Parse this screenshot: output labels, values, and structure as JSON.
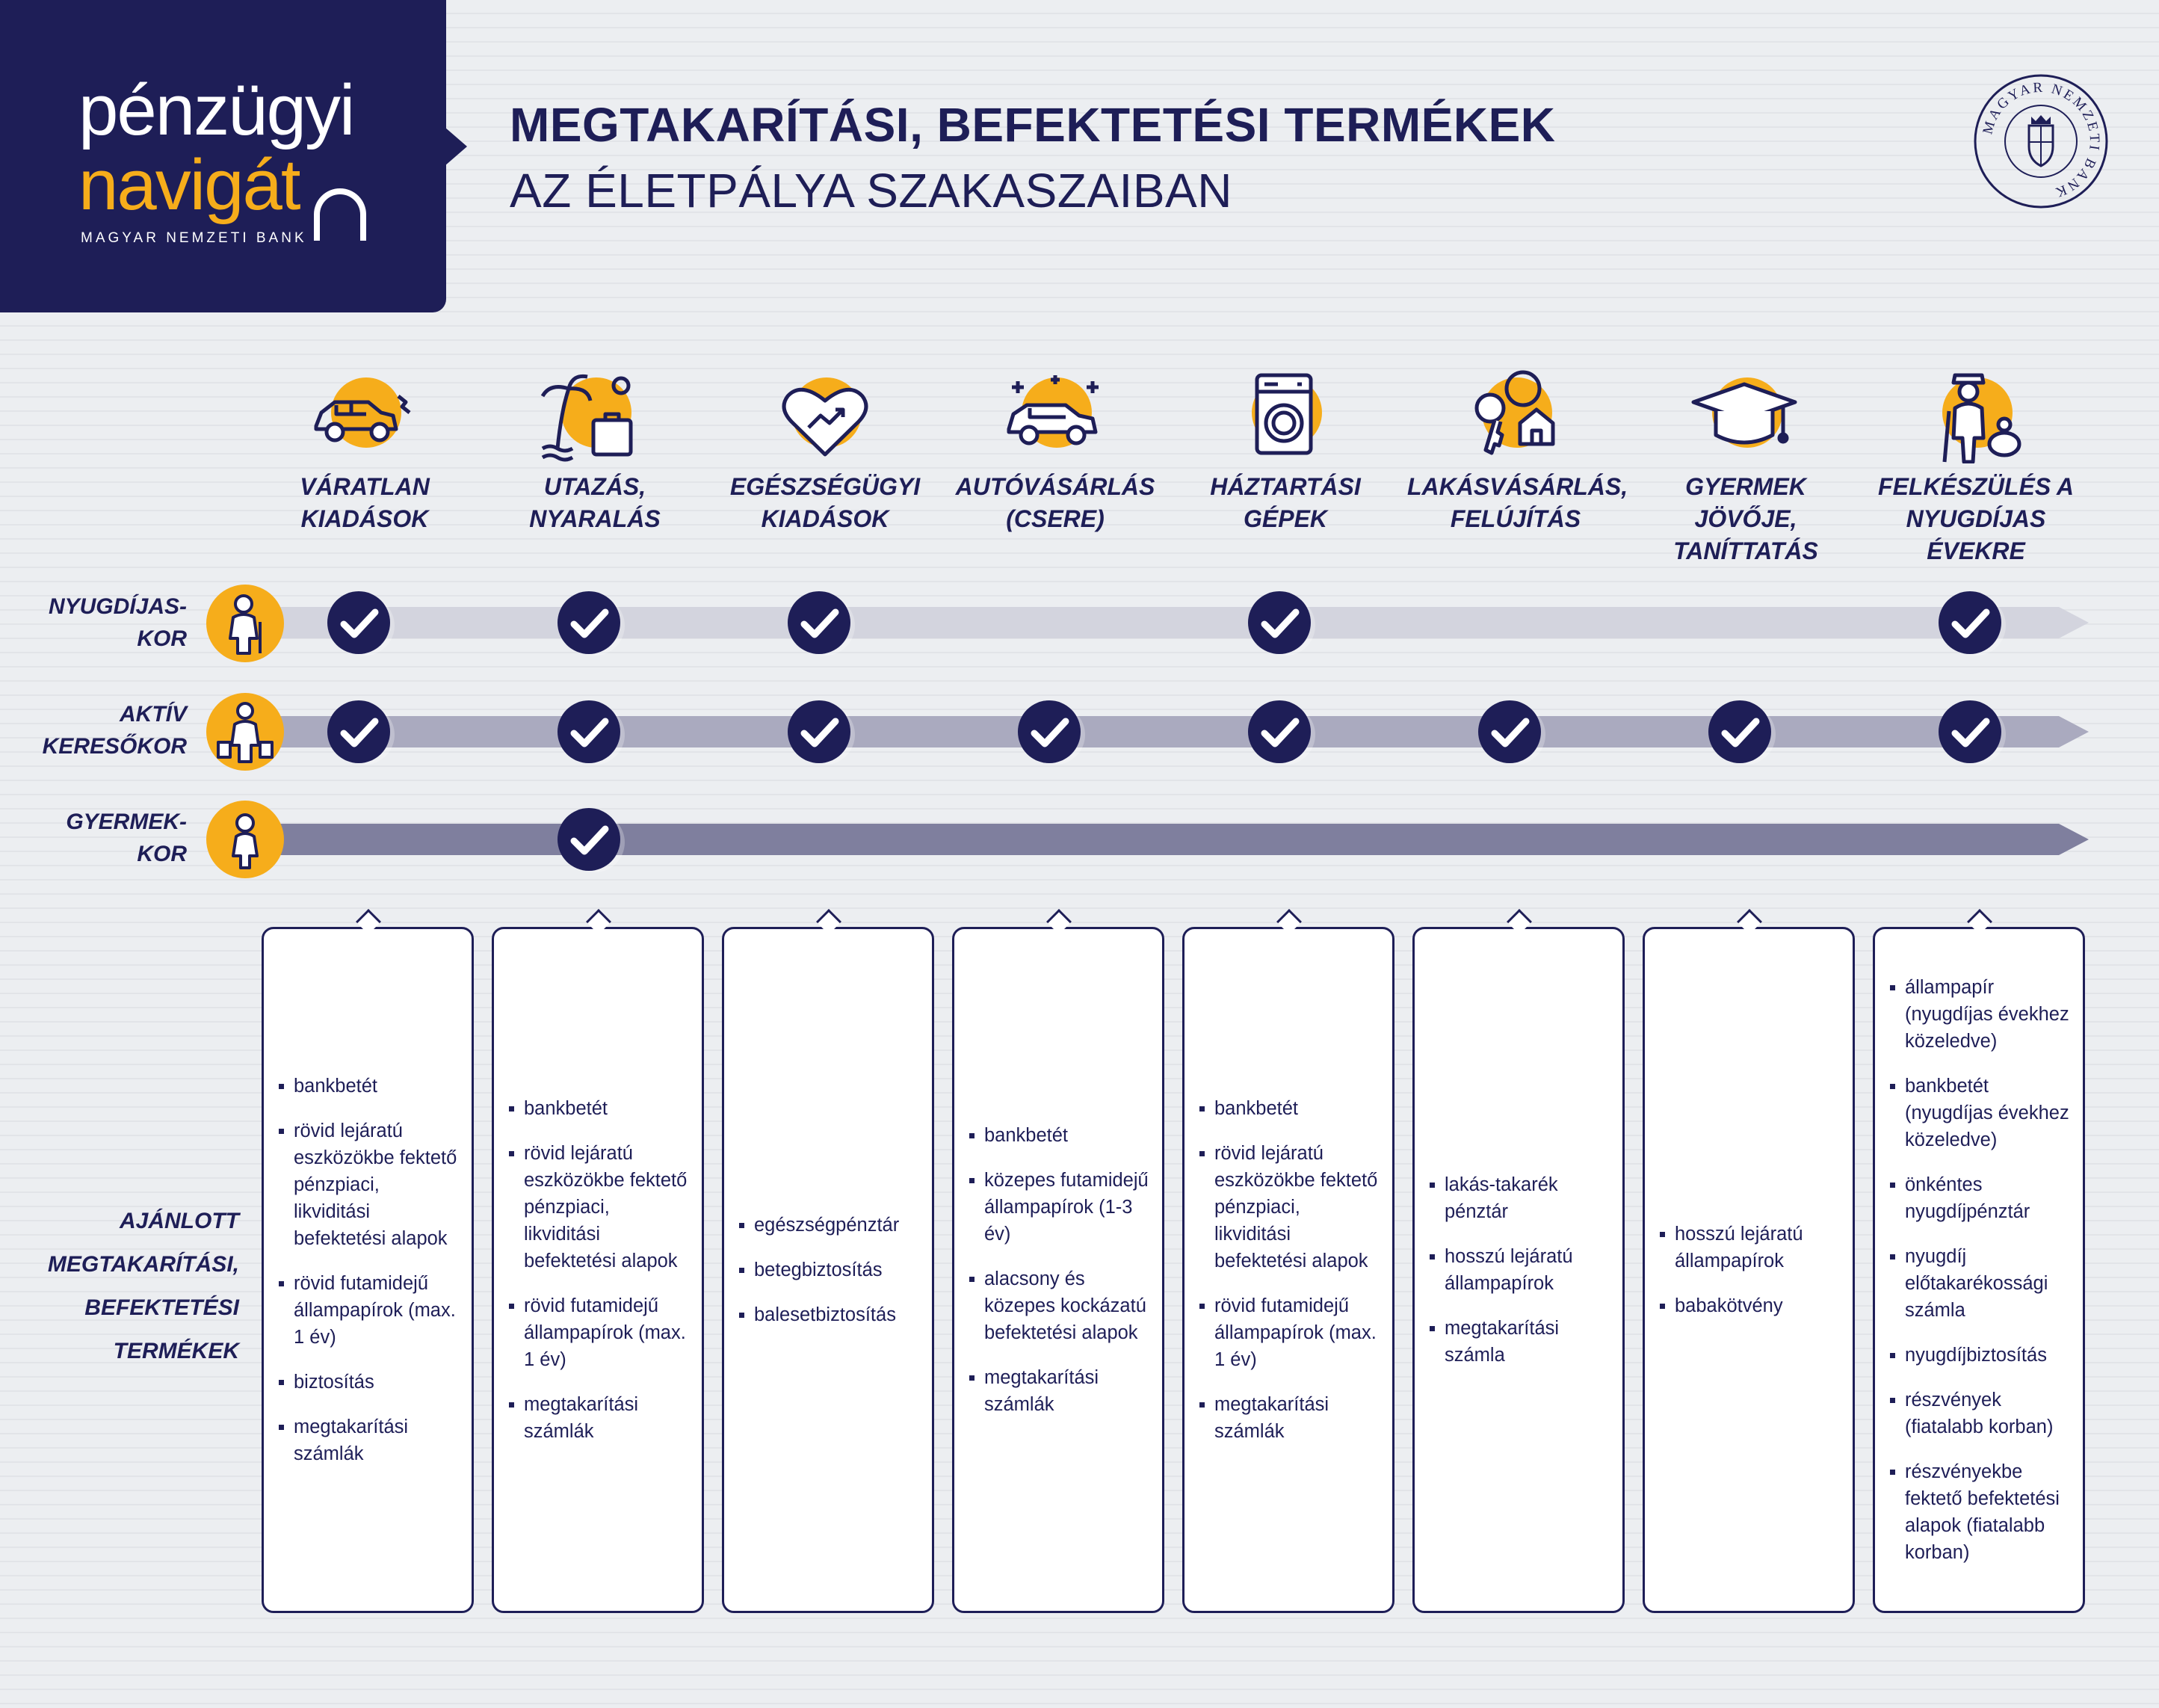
{
  "logo": {
    "line1": "pénzügyi",
    "line2": "navigát",
    "subtitle": "MAGYAR NEMZETI BANK"
  },
  "title": {
    "main": "MEGTAKARÍTÁSI, BEFEKTETÉSI TERMÉKEK",
    "sub": "AZ ÉLETPÁLYA SZAKASZAIBAN"
  },
  "seal": {
    "text": "MAGYAR NEMZETI BANK"
  },
  "colors": {
    "navy": "#1e1e57",
    "accent": "#f6ad1b",
    "band_top": "#d3d4de",
    "band_mid": "#aaaabf",
    "band_bottom": "#7f7f9e"
  },
  "categories": [
    {
      "label": "VÁRATLAN KIADÁSOK",
      "icon": "car-crash-icon"
    },
    {
      "label": "UTAZÁS, NYARALÁS",
      "icon": "travel-icon"
    },
    {
      "label": "EGÉSZSÉGÜGYI KIADÁSOK",
      "icon": "health-heart-icon"
    },
    {
      "label": "AUTÓVÁSÁRLÁS (CSERE)",
      "icon": "new-car-icon"
    },
    {
      "label": "HÁZTARTÁSI GÉPEK",
      "icon": "washing-machine-icon"
    },
    {
      "label": "LAKÁSVÁSÁRLÁS, FELÚJÍTÁS",
      "icon": "house-keys-icon"
    },
    {
      "label": "GYERMEK JÖVŐJE, TANÍTTATÁS",
      "icon": "graduation-cap-icon"
    },
    {
      "label": "FELKÉSZÜLÉS A NYUGDÍJAS ÉVEKRE",
      "icon": "retirement-icon"
    }
  ],
  "life_stages": [
    {
      "label_1": "NYUGDÍJAS-",
      "label_2": "KOR",
      "icon": "elderly-person-icon",
      "checks": [
        true,
        true,
        true,
        false,
        true,
        false,
        false,
        true
      ]
    },
    {
      "label_1": "AKTÍV",
      "label_2": "KERESŐKOR",
      "icon": "adult-shopping-icon",
      "checks": [
        true,
        true,
        true,
        true,
        true,
        true,
        true,
        true
      ]
    },
    {
      "label_1": "GYERMEK-",
      "label_2": "KOR",
      "icon": "child-icon",
      "checks": [
        false,
        true,
        false,
        false,
        false,
        false,
        false,
        false
      ]
    }
  ],
  "products_label": "AJÁNLOTT MEGTAKARÍTÁSI, BEFEKTETÉSI TERMÉKEK",
  "products": [
    [
      "bankbetét",
      "rövid lejáratú eszközökbe fektető pénzpiaci, likviditási befektetési alapok",
      "rövid futamidejű állampapírok (max. 1 év)",
      "biztosítás",
      "megtakarítási számlák"
    ],
    [
      "bankbetét",
      "rövid lejáratú eszközökbe fektető pénzpiaci, likviditási befektetési alapok",
      "rövid futamidejű állampapírok (max. 1 év)",
      "megtakarítási számlák"
    ],
    [
      "egészségpénztár",
      "betegbiztosítás",
      "balesetbiztosítás"
    ],
    [
      "bankbetét",
      "közepes futamidejű állampapírok (1-3 év)",
      "alacsony és közepes kockázatú befektetési alapok",
      "megtakarítási számlák"
    ],
    [
      "bankbetét",
      "rövid lejáratú eszközökbe fektető pénzpiaci, likviditási befektetési alapok",
      "rövid futamidejű állampapírok (max. 1 év)",
      "megtakarítási számlák"
    ],
    [
      "lakás-takarék pénztár",
      "hosszú lejáratú állampapírok",
      "megtakarítási számla"
    ],
    [
      "hosszú lejáratú állampapírok",
      "babakötvény"
    ],
    [
      "állampapír (nyugdíjas évekhez közeledve)",
      "bankbetét (nyugdíjas évekhez közeledve)",
      "önkéntes nyugdíjpénztár",
      "nyugdíj előtakarékossági számla",
      "nyugdíjbiztosítás",
      "részvények (fiatalabb korban)",
      "részvényekbe fektető befektetési alapok (fiatalabb korban)"
    ]
  ]
}
